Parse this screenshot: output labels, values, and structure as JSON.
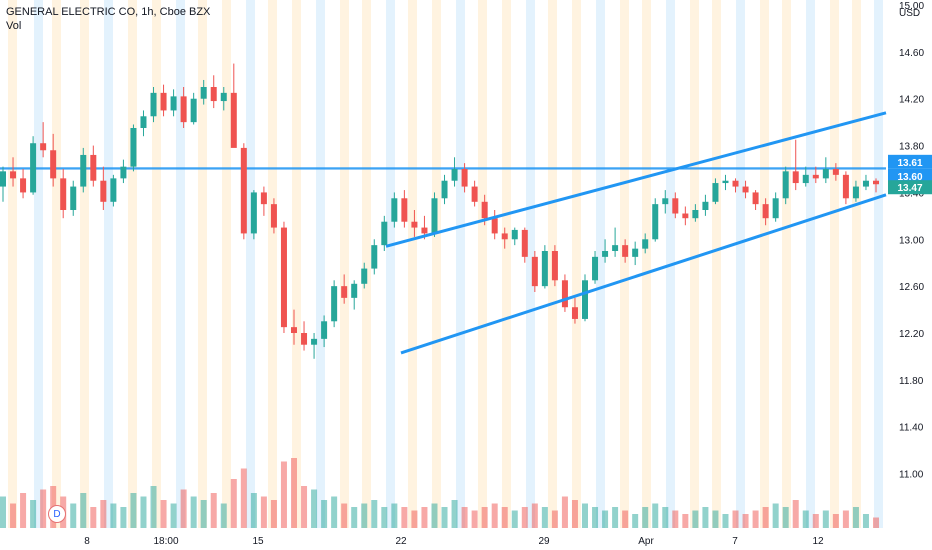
{
  "header": {
    "symbol_line": "GENERAL ELECTRIC CO, 1h, Cboe BZX",
    "volume_label": "Vol"
  },
  "badges": {
    "dividend": "D"
  },
  "colors": {
    "up": "#26a69a",
    "down": "#ef5350",
    "trendline": "#2196f3",
    "level_line": "#2196f3",
    "last_price": "#26a69a",
    "session_shade": "#fff3e0",
    "session_shade_alt": "#e3f2fd",
    "axis_text": "#131722"
  },
  "chart_data": {
    "type": "candlestick",
    "title": "GENERAL ELECTRIC CO, 1h, Cboe BZX",
    "y_axis": {
      "unit": "USD",
      "ticks": [
        15.0,
        14.6,
        14.2,
        13.8,
        13.4,
        13.0,
        12.6,
        12.2,
        11.8,
        11.4,
        11.0
      ],
      "range": [
        10.8,
        15.0
      ],
      "side": "right"
    },
    "x_axis": {
      "ticks": [
        "8",
        "18:00",
        "15",
        "22",
        "29",
        "Apr",
        "7",
        "12"
      ]
    },
    "price_labels": [
      {
        "value": "13.61",
        "kind": "level"
      },
      {
        "value": "13.60",
        "kind": "level"
      },
      {
        "value": "13.47",
        "kind": "last"
      }
    ],
    "horizontal_levels": [
      13.61,
      13.6
    ],
    "trendlines": [
      {
        "name": "channel-upper",
        "points": [
          [
            "22",
            12.94
          ],
          [
            "14",
            14.08
          ]
        ]
      },
      {
        "name": "channel-lower",
        "points": [
          [
            "22",
            12.03
          ],
          [
            "14",
            13.38
          ]
        ]
      }
    ],
    "candles": [
      [
        13.45,
        13.62,
        13.32,
        13.58
      ],
      [
        13.58,
        13.7,
        13.45,
        13.52
      ],
      [
        13.52,
        13.6,
        13.35,
        13.4
      ],
      [
        13.4,
        13.88,
        13.38,
        13.82
      ],
      [
        13.82,
        14.0,
        13.7,
        13.76
      ],
      [
        13.76,
        13.9,
        13.45,
        13.52
      ],
      [
        13.52,
        13.6,
        13.18,
        13.25
      ],
      [
        13.25,
        13.5,
        13.2,
        13.45
      ],
      [
        13.45,
        13.78,
        13.4,
        13.72
      ],
      [
        13.72,
        13.8,
        13.45,
        13.5
      ],
      [
        13.5,
        13.62,
        13.25,
        13.32
      ],
      [
        13.32,
        13.55,
        13.28,
        13.52
      ],
      [
        13.52,
        13.68,
        13.48,
        13.62
      ],
      [
        13.62,
        13.98,
        13.58,
        13.95
      ],
      [
        13.95,
        14.1,
        13.88,
        14.05
      ],
      [
        14.05,
        14.3,
        14.0,
        14.25
      ],
      [
        14.25,
        14.32,
        14.05,
        14.1
      ],
      [
        14.1,
        14.28,
        14.05,
        14.22
      ],
      [
        14.22,
        14.3,
        13.95,
        14.0
      ],
      [
        14.0,
        14.25,
        13.98,
        14.2
      ],
      [
        14.2,
        14.36,
        14.15,
        14.3
      ],
      [
        14.3,
        14.4,
        14.12,
        14.18
      ],
      [
        14.18,
        14.3,
        14.1,
        14.25
      ],
      [
        14.25,
        14.5,
        13.8,
        13.78
      ],
      [
        13.78,
        13.82,
        13.0,
        13.05
      ],
      [
        13.05,
        13.42,
        13.0,
        13.4
      ],
      [
        13.4,
        13.45,
        13.2,
        13.3
      ],
      [
        13.3,
        13.35,
        13.05,
        13.1
      ],
      [
        13.1,
        13.15,
        12.2,
        12.25
      ],
      [
        12.25,
        12.4,
        12.1,
        12.2
      ],
      [
        12.2,
        12.3,
        12.05,
        12.1
      ],
      [
        12.1,
        12.2,
        11.98,
        12.15
      ],
      [
        12.15,
        12.35,
        12.08,
        12.3
      ],
      [
        12.3,
        12.65,
        12.25,
        12.6
      ],
      [
        12.6,
        12.7,
        12.45,
        12.5
      ],
      [
        12.5,
        12.65,
        12.4,
        12.62
      ],
      [
        12.62,
        12.8,
        12.58,
        12.75
      ],
      [
        12.75,
        13.0,
        12.7,
        12.95
      ],
      [
        12.95,
        13.2,
        12.9,
        13.15
      ],
      [
        13.15,
        13.4,
        13.1,
        13.35
      ],
      [
        13.35,
        13.42,
        13.1,
        13.15
      ],
      [
        13.15,
        13.25,
        13.02,
        13.1
      ],
      [
        13.1,
        13.2,
        13.0,
        13.05
      ],
      [
        13.05,
        13.4,
        13.02,
        13.35
      ],
      [
        13.35,
        13.55,
        13.3,
        13.5
      ],
      [
        13.5,
        13.7,
        13.45,
        13.6
      ],
      [
        13.6,
        13.65,
        13.4,
        13.45
      ],
      [
        13.45,
        13.5,
        13.28,
        13.32
      ],
      [
        13.32,
        13.38,
        13.12,
        13.18
      ],
      [
        13.18,
        13.25,
        13.0,
        13.05
      ],
      [
        13.05,
        13.1,
        12.92,
        13.0
      ],
      [
        13.0,
        13.1,
        12.95,
        13.08
      ],
      [
        13.08,
        13.1,
        12.8,
        12.85
      ],
      [
        12.85,
        12.9,
        12.55,
        12.6
      ],
      [
        12.6,
        12.95,
        12.58,
        12.9
      ],
      [
        12.9,
        12.95,
        12.6,
        12.65
      ],
      [
        12.65,
        12.7,
        12.38,
        12.42
      ],
      [
        12.42,
        12.5,
        12.28,
        12.32
      ],
      [
        12.32,
        12.7,
        12.3,
        12.65
      ],
      [
        12.65,
        12.9,
        12.62,
        12.85
      ],
      [
        12.85,
        13.0,
        12.8,
        12.9
      ],
      [
        12.9,
        13.1,
        12.85,
        12.95
      ],
      [
        12.95,
        13.0,
        12.8,
        12.85
      ],
      [
        12.85,
        12.98,
        12.78,
        12.92
      ],
      [
        12.92,
        13.05,
        12.88,
        13.0
      ],
      [
        13.0,
        13.35,
        12.98,
        13.3
      ],
      [
        13.3,
        13.42,
        13.22,
        13.35
      ],
      [
        13.35,
        13.4,
        13.18,
        13.22
      ],
      [
        13.22,
        13.28,
        13.12,
        13.18
      ],
      [
        13.18,
        13.3,
        13.15,
        13.25
      ],
      [
        13.25,
        13.38,
        13.2,
        13.32
      ],
      [
        13.32,
        13.52,
        13.3,
        13.48
      ],
      [
        13.48,
        13.55,
        13.42,
        13.5
      ],
      [
        13.5,
        13.52,
        13.4,
        13.45
      ],
      [
        13.45,
        13.5,
        13.35,
        13.4
      ],
      [
        13.4,
        13.42,
        13.25,
        13.3
      ],
      [
        13.3,
        13.35,
        13.12,
        13.18
      ],
      [
        13.18,
        13.4,
        13.15,
        13.35
      ],
      [
        13.35,
        13.62,
        13.3,
        13.58
      ],
      [
        13.58,
        13.85,
        13.42,
        13.48
      ],
      [
        13.48,
        13.62,
        13.45,
        13.55
      ],
      [
        13.55,
        13.62,
        13.48,
        13.52
      ],
      [
        13.52,
        13.7,
        13.48,
        13.6
      ],
      [
        13.6,
        13.65,
        13.5,
        13.55
      ],
      [
        13.55,
        13.58,
        13.3,
        13.35
      ],
      [
        13.35,
        13.5,
        13.32,
        13.45
      ],
      [
        13.45,
        13.55,
        13.42,
        13.5
      ],
      [
        13.5,
        13.52,
        13.4,
        13.47
      ]
    ],
    "volumes": [
      0.45,
      0.35,
      0.5,
      0.4,
      0.55,
      0.6,
      0.45,
      0.35,
      0.5,
      0.3,
      0.4,
      0.35,
      0.3,
      0.5,
      0.45,
      0.6,
      0.4,
      0.35,
      0.55,
      0.45,
      0.4,
      0.5,
      0.35,
      0.7,
      0.85,
      0.5,
      0.45,
      0.4,
      0.95,
      1.0,
      0.6,
      0.55,
      0.4,
      0.45,
      0.35,
      0.3,
      0.35,
      0.4,
      0.3,
      0.35,
      0.3,
      0.25,
      0.3,
      0.35,
      0.3,
      0.4,
      0.3,
      0.25,
      0.3,
      0.35,
      0.3,
      0.25,
      0.3,
      0.35,
      0.3,
      0.25,
      0.45,
      0.4,
      0.35,
      0.3,
      0.25,
      0.3,
      0.25,
      0.2,
      0.3,
      0.35,
      0.3,
      0.25,
      0.2,
      0.25,
      0.3,
      0.25,
      0.2,
      0.25,
      0.2,
      0.25,
      0.3,
      0.35,
      0.3,
      0.4,
      0.25,
      0.2,
      0.25,
      0.2,
      0.25,
      0.3,
      0.2,
      0.15
    ]
  }
}
